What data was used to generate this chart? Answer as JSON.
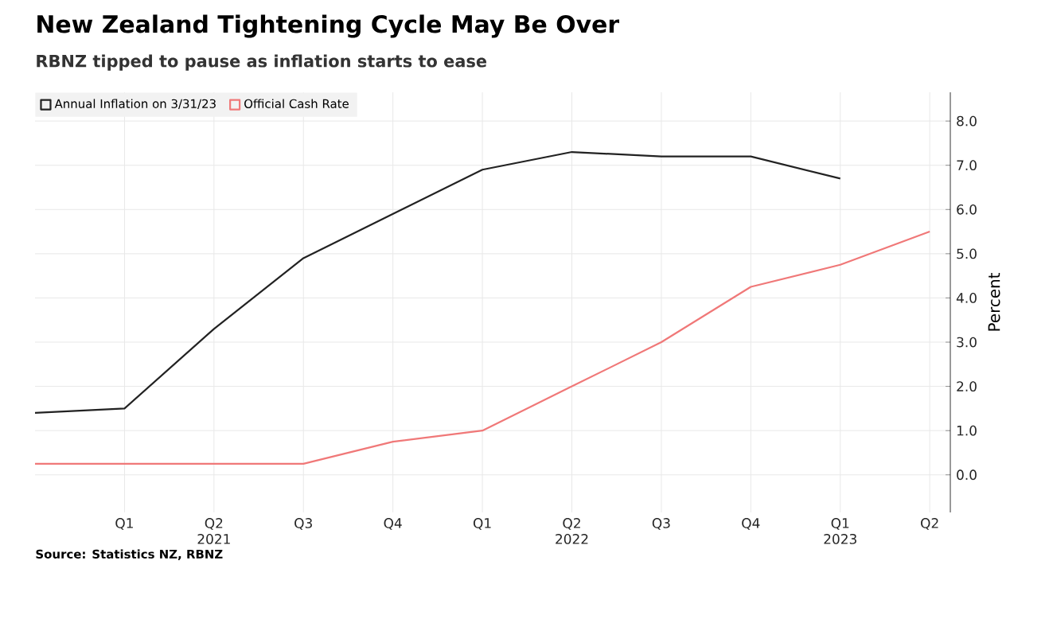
{
  "chart_data": {
    "type": "line",
    "title": "New Zealand Tightening Cycle May Be Over",
    "subtitle": "RBNZ tipped to pause as inflation starts to ease",
    "ylabel": "Percent",
    "categories": [
      null,
      "Q1",
      "Q2 2021",
      "Q3",
      "Q4",
      "Q1",
      "Q2 2022",
      "Q3",
      "Q4",
      "Q1 2023",
      "Q2"
    ],
    "series": [
      {
        "name": "Annual Inflation on 3/31/23",
        "color": "#222222",
        "values": [
          1.4,
          1.5,
          3.3,
          4.9,
          5.9,
          6.9,
          7.3,
          7.2,
          7.2,
          6.7,
          null
        ]
      },
      {
        "name": "Official Cash Rate",
        "color": "#f07878",
        "values": [
          0.25,
          0.25,
          0.25,
          0.25,
          0.75,
          1.0,
          2.0,
          3.0,
          4.25,
          4.75,
          5.5
        ]
      }
    ],
    "ylim": [
      -0.85,
      8.65
    ],
    "yticks": [
      {
        "value": 0,
        "label": "0.0"
      },
      {
        "value": 1,
        "label": "1.0"
      },
      {
        "value": 2,
        "label": "2.0"
      },
      {
        "value": 3,
        "label": "3.0"
      },
      {
        "value": 4,
        "label": "4.0"
      },
      {
        "value": 5,
        "label": "5.0"
      },
      {
        "value": 6,
        "label": "6.0"
      },
      {
        "value": 7,
        "label": "7.0"
      },
      {
        "value": 8,
        "label": "8.0"
      }
    ],
    "grid": true,
    "legend": "top left",
    "annotations": [
      "Source: Statistics NZ, RBNZ"
    ]
  }
}
